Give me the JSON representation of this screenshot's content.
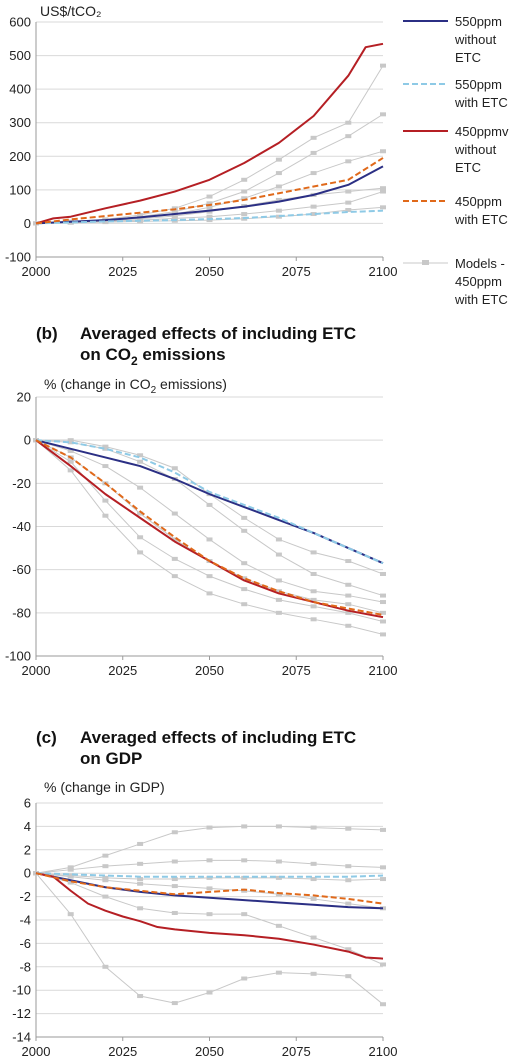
{
  "colors": {
    "s550_no": "#2b2f84",
    "s550_etc": "#8ecae6",
    "s450_no": "#b51f24",
    "s450_etc": "#e0691a",
    "models": "#c8c8c8",
    "grid": "#d9d9d9"
  },
  "legend": [
    {
      "key": "s550_no",
      "dash": false,
      "lines": [
        "550ppm",
        "without",
        "ETC"
      ]
    },
    {
      "key": "s550_etc",
      "dash": true,
      "lines": [
        "550ppm",
        "with ETC"
      ]
    },
    {
      "key": "s450_no",
      "dash": false,
      "lines": [
        "450ppmv",
        "without",
        "ETC"
      ]
    },
    {
      "key": "s450_etc",
      "dash": true,
      "lines": [
        "450ppm",
        "with ETC"
      ]
    },
    {
      "key": "models",
      "dash": false,
      "marker": true,
      "lines": [
        "Models -",
        "450ppm",
        "with ETC"
      ]
    }
  ],
  "chart_data": [
    {
      "type": "line",
      "title": "",
      "ylabel": "US$/tCO₂",
      "xlim": [
        2000,
        2100
      ],
      "ylim": [
        -100,
        600
      ],
      "yticks": [
        -100,
        0,
        100,
        200,
        300,
        400,
        500,
        600
      ],
      "xticks": [
        2000,
        2025,
        2050,
        2075,
        2100
      ],
      "series": [
        {
          "name": "550ppm without ETC",
          "key": "s550_no",
          "dash": false,
          "x": [
            2000,
            2010,
            2020,
            2030,
            2040,
            2050,
            2060,
            2070,
            2080,
            2090,
            2100
          ],
          "y": [
            0,
            5,
            10,
            18,
            28,
            38,
            50,
            65,
            85,
            115,
            170
          ]
        },
        {
          "name": "550ppm with ETC",
          "key": "s550_etc",
          "dash": true,
          "x": [
            2000,
            2010,
            2020,
            2030,
            2040,
            2050,
            2060,
            2070,
            2080,
            2090,
            2100
          ],
          "y": [
            0,
            3,
            6,
            8,
            10,
            13,
            16,
            22,
            28,
            34,
            38
          ]
        },
        {
          "name": "450ppmv without ETC",
          "key": "s450_no",
          "dash": false,
          "x": [
            2000,
            2005,
            2010,
            2020,
            2030,
            2040,
            2050,
            2060,
            2070,
            2080,
            2090,
            2095,
            2100
          ],
          "y": [
            0,
            15,
            20,
            45,
            68,
            95,
            130,
            180,
            240,
            320,
            440,
            525,
            535
          ]
        },
        {
          "name": "450ppm with ETC",
          "key": "s450_etc",
          "dash": true,
          "x": [
            2000,
            2010,
            2020,
            2030,
            2040,
            2050,
            2060,
            2070,
            2080,
            2090,
            2100
          ],
          "y": [
            0,
            12,
            22,
            32,
            42,
            55,
            70,
            90,
            110,
            130,
            195
          ]
        }
      ],
      "models": [
        {
          "x": [
            2000,
            2010,
            2020,
            2030,
            2040,
            2050,
            2060,
            2070,
            2080,
            2090,
            2100
          ],
          "y": [
            0,
            5,
            12,
            25,
            45,
            80,
            130,
            190,
            255,
            300,
            470
          ]
        },
        {
          "x": [
            2000,
            2010,
            2020,
            2030,
            2040,
            2050,
            2060,
            2070,
            2080,
            2090,
            2100
          ],
          "y": [
            0,
            5,
            10,
            20,
            35,
            60,
            95,
            150,
            210,
            260,
            325
          ]
        },
        {
          "x": [
            2000,
            2010,
            2020,
            2030,
            2040,
            2050,
            2060,
            2070,
            2080,
            2090,
            2100
          ],
          "y": [
            0,
            4,
            9,
            16,
            28,
            48,
            75,
            110,
            150,
            185,
            215
          ]
        },
        {
          "x": [
            2000,
            2010,
            2020,
            2030,
            2040,
            2050,
            2060,
            2070,
            2080,
            2090,
            2100
          ],
          "y": [
            0,
            4,
            8,
            14,
            22,
            35,
            52,
            70,
            85,
            95,
            105
          ]
        },
        {
          "x": [
            2000,
            2010,
            2020,
            2030,
            2040,
            2050,
            2060,
            2070,
            2080,
            2090,
            2100
          ],
          "y": [
            0,
            3,
            6,
            10,
            15,
            20,
            28,
            38,
            50,
            62,
            95
          ]
        },
        {
          "x": [
            2000,
            2010,
            2020,
            2030,
            2040,
            2050,
            2060,
            2070,
            2080,
            2090,
            2100
          ],
          "y": [
            0,
            2,
            4,
            6,
            8,
            10,
            14,
            20,
            28,
            40,
            48
          ]
        }
      ]
    },
    {
      "type": "line",
      "title_letter": "(b)",
      "title_line1": "Averaged effects of including ETC",
      "title_line2_pre": "on CO",
      "title_line2_sub": "2",
      "title_line2_post": " emissions",
      "ylabel_pre": "% (change in CO",
      "ylabel_sub": "2",
      "ylabel_post": " emissions)",
      "xlim": [
        2000,
        2100
      ],
      "ylim": [
        -100,
        20
      ],
      "yticks": [
        -100,
        -80,
        -60,
        -40,
        -20,
        0,
        20
      ],
      "xticks": [
        2000,
        2025,
        2050,
        2075,
        2100
      ],
      "series": [
        {
          "name": "550ppm without ETC",
          "key": "s550_no",
          "dash": false,
          "x": [
            2000,
            2010,
            2020,
            2030,
            2040,
            2050,
            2060,
            2070,
            2080,
            2090,
            2100
          ],
          "y": [
            0,
            -4,
            -8,
            -12,
            -18,
            -25,
            -31,
            -37,
            -43,
            -50,
            -57
          ]
        },
        {
          "name": "550ppm with ETC",
          "key": "s550_etc",
          "dash": true,
          "x": [
            2000,
            2010,
            2020,
            2030,
            2040,
            2050,
            2060,
            2070,
            2080,
            2090,
            2100
          ],
          "y": [
            0,
            -1,
            -4,
            -8,
            -15,
            -24,
            -30,
            -36,
            -43,
            -50,
            -57
          ]
        },
        {
          "name": "450ppmv without ETC",
          "key": "s450_no",
          "dash": false,
          "x": [
            2000,
            2010,
            2020,
            2030,
            2040,
            2050,
            2060,
            2070,
            2080,
            2090,
            2100
          ],
          "y": [
            0,
            -12,
            -25,
            -36,
            -47,
            -56,
            -65,
            -71,
            -75,
            -79,
            -82
          ]
        },
        {
          "name": "450ppm with ETC",
          "key": "s450_etc",
          "dash": true,
          "x": [
            2000,
            2010,
            2020,
            2030,
            2040,
            2050,
            2060,
            2070,
            2080,
            2090,
            2100
          ],
          "y": [
            0,
            -8,
            -20,
            -33,
            -45,
            -56,
            -64,
            -70,
            -75,
            -78,
            -81
          ]
        }
      ],
      "models": [
        {
          "x": [
            2000,
            2010,
            2020,
            2030,
            2040,
            2050,
            2060,
            2070,
            2080,
            2090,
            2100
          ],
          "y": [
            0,
            0,
            -3,
            -7,
            -13,
            -25,
            -36,
            -46,
            -52,
            -56,
            -62
          ]
        },
        {
          "x": [
            2000,
            2010,
            2020,
            2030,
            2040,
            2050,
            2060,
            2070,
            2080,
            2090,
            2100
          ],
          "y": [
            0,
            -1,
            -4,
            -10,
            -18,
            -30,
            -42,
            -53,
            -62,
            -67,
            -72
          ]
        },
        {
          "x": [
            2000,
            2010,
            2020,
            2030,
            2040,
            2050,
            2060,
            2070,
            2080,
            2090,
            2100
          ],
          "y": [
            0,
            -5,
            -12,
            -22,
            -34,
            -46,
            -57,
            -65,
            -70,
            -72,
            -75
          ]
        },
        {
          "x": [
            2000,
            2010,
            2020,
            2030,
            2040,
            2050,
            2060,
            2070,
            2080,
            2090,
            2100
          ],
          "y": [
            0,
            -8,
            -20,
            -34,
            -46,
            -56,
            -64,
            -70,
            -74,
            -76,
            -80
          ]
        },
        {
          "x": [
            2000,
            2010,
            2020,
            2030,
            2040,
            2050,
            2060,
            2070,
            2080,
            2090,
            2100
          ],
          "y": [
            0,
            -10,
            -28,
            -45,
            -55,
            -63,
            -69,
            -74,
            -77,
            -80,
            -84
          ]
        },
        {
          "x": [
            2000,
            2010,
            2020,
            2030,
            2040,
            2050,
            2060,
            2070,
            2080,
            2090,
            2100
          ],
          "y": [
            0,
            -14,
            -35,
            -52,
            -63,
            -71,
            -76,
            -80,
            -83,
            -86,
            -90
          ]
        }
      ]
    },
    {
      "type": "line",
      "title_letter": "(c)",
      "title_line1": "Averaged effects of including ETC",
      "title_line2": "on GDP",
      "ylabel": "% (change in GDP)",
      "xlim": [
        2000,
        2100
      ],
      "ylim": [
        -14,
        6
      ],
      "yticks": [
        -14,
        -12,
        -10,
        -8,
        -6,
        -4,
        -2,
        0,
        2,
        4,
        6
      ],
      "xticks": [
        2000,
        2025,
        2050,
        2075,
        2100
      ],
      "series": [
        {
          "name": "550ppm without ETC",
          "key": "s550_no",
          "dash": false,
          "x": [
            2000,
            2010,
            2020,
            2030,
            2040,
            2050,
            2060,
            2070,
            2080,
            2090,
            2100
          ],
          "y": [
            0,
            -0.6,
            -1.2,
            -1.6,
            -1.9,
            -2.1,
            -2.3,
            -2.5,
            -2.7,
            -2.9,
            -3.0
          ]
        },
        {
          "name": "550ppm with ETC",
          "key": "s550_etc",
          "dash": true,
          "x": [
            2000,
            2010,
            2020,
            2030,
            2040,
            2050,
            2060,
            2070,
            2080,
            2090,
            2100
          ],
          "y": [
            0,
            -0.1,
            -0.2,
            -0.3,
            -0.3,
            -0.3,
            -0.3,
            -0.3,
            -0.3,
            -0.3,
            -0.2
          ]
        },
        {
          "name": "450ppmv without ETC",
          "key": "s450_no",
          "dash": false,
          "x": [
            2000,
            2005,
            2010,
            2015,
            2020,
            2025,
            2030,
            2035,
            2040,
            2050,
            2060,
            2070,
            2080,
            2090,
            2095,
            2100
          ],
          "y": [
            0,
            -0.3,
            -1.5,
            -2.6,
            -3.2,
            -3.7,
            -4.1,
            -4.6,
            -4.8,
            -5.1,
            -5.3,
            -5.6,
            -6.1,
            -6.7,
            -7.2,
            -7.3
          ]
        },
        {
          "name": "450ppm with ETC",
          "key": "s450_etc",
          "dash": true,
          "x": [
            2000,
            2010,
            2020,
            2030,
            2040,
            2050,
            2060,
            2070,
            2080,
            2090,
            2100
          ],
          "y": [
            0,
            -0.7,
            -1.2,
            -1.5,
            -1.8,
            -1.6,
            -1.4,
            -1.7,
            -1.9,
            -2.2,
            -2.6
          ]
        }
      ],
      "models": [
        {
          "x": [
            2000,
            2010,
            2020,
            2030,
            2040,
            2050,
            2060,
            2070,
            2080,
            2090,
            2100
          ],
          "y": [
            0,
            0.5,
            1.5,
            2.5,
            3.5,
            3.9,
            4.0,
            4.0,
            3.9,
            3.8,
            3.7
          ]
        },
        {
          "x": [
            2000,
            2010,
            2020,
            2030,
            2040,
            2050,
            2060,
            2070,
            2080,
            2090,
            2100
          ],
          "y": [
            0,
            0.3,
            0.6,
            0.8,
            1.0,
            1.1,
            1.1,
            1.0,
            0.8,
            0.6,
            0.5
          ]
        },
        {
          "x": [
            2000,
            2010,
            2020,
            2030,
            2040,
            2050,
            2060,
            2070,
            2080,
            2090,
            2100
          ],
          "y": [
            0,
            -0.2,
            -0.4,
            -0.5,
            -0.5,
            -0.4,
            -0.4,
            -0.4,
            -0.5,
            -0.6,
            -0.5
          ]
        },
        {
          "x": [
            2000,
            2010,
            2020,
            2030,
            2040,
            2050,
            2060,
            2070,
            2080,
            2090,
            2100
          ],
          "y": [
            0,
            -0.3,
            -0.6,
            -0.9,
            -1.1,
            -1.3,
            -1.5,
            -1.8,
            -2.2,
            -2.6,
            -3.0
          ]
        },
        {
          "x": [
            2000,
            2010,
            2020,
            2030,
            2040,
            2050,
            2060,
            2070,
            2080,
            2090,
            2100
          ],
          "y": [
            0,
            -0.8,
            -2.0,
            -3.0,
            -3.4,
            -3.5,
            -3.5,
            -4.5,
            -5.5,
            -6.5,
            -7.8
          ]
        },
        {
          "x": [
            2000,
            2010,
            2020,
            2030,
            2040,
            2050,
            2060,
            2070,
            2080,
            2090,
            2100
          ],
          "y": [
            0,
            -3.5,
            -8.0,
            -10.5,
            -11.1,
            -10.2,
            -9.0,
            -8.5,
            -8.6,
            -8.8,
            -11.2
          ]
        }
      ]
    }
  ]
}
